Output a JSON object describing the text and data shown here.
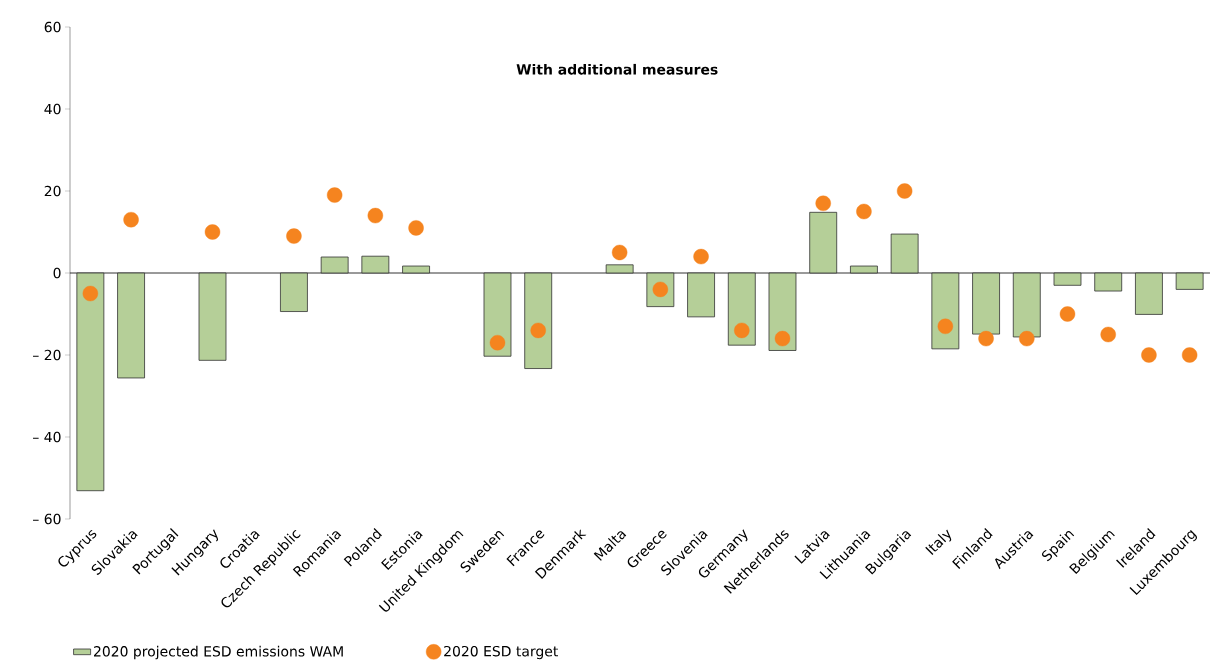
{
  "chart_data": {
    "type": "bar",
    "title": "With additional measures",
    "categories": [
      "Cyprus",
      "Slovakia",
      "Portugal",
      "Hungary",
      "Croatia",
      "Czech Republic",
      "Romania",
      "Poland",
      "Estonia",
      "United Kingdom",
      "Sweden",
      "France",
      "Denmark",
      "Malta",
      "Greece",
      "Slovenia",
      "Germany",
      "Netherlands",
      "Latvia",
      "Lithuania",
      "Bulgaria",
      "Italy",
      "Finland",
      "Austria",
      "Spain",
      "Belgium",
      "Ireland",
      "Luxembourg"
    ],
    "series": [
      {
        "name": "2020 projected ESD emissions WAM",
        "color": "#b5cf98",
        "values": [
          -53.1,
          -25.6,
          null,
          -21.3,
          null,
          -9.4,
          3.9,
          4.1,
          1.7,
          null,
          -20.3,
          -23.3,
          null,
          2.0,
          -8.2,
          -10.7,
          -17.6,
          -18.9,
          14.8,
          1.7,
          9.5,
          -18.5,
          -14.9,
          -15.6,
          -3.0,
          -4.4,
          -10.1,
          -4.0
        ]
      },
      {
        "name": "2020 ESD target",
        "type": "scatter",
        "color": "#f5841f",
        "values": [
          -5,
          13,
          null,
          10,
          null,
          9,
          19,
          14,
          11,
          null,
          -17,
          -14,
          null,
          5,
          -4,
          4,
          -14,
          -16,
          17,
          15,
          20,
          -13,
          -16,
          -16,
          -10,
          -15,
          -20,
          -20
        ]
      }
    ],
    "ylim": [
      -60,
      60
    ],
    "yticks": [
      {
        "value": -60,
        "label": "– 60"
      },
      {
        "value": -40,
        "label": "– 40"
      },
      {
        "value": -20,
        "label": "– 20"
      },
      0,
      20,
      40,
      60
    ],
    "legend": "bottom"
  }
}
